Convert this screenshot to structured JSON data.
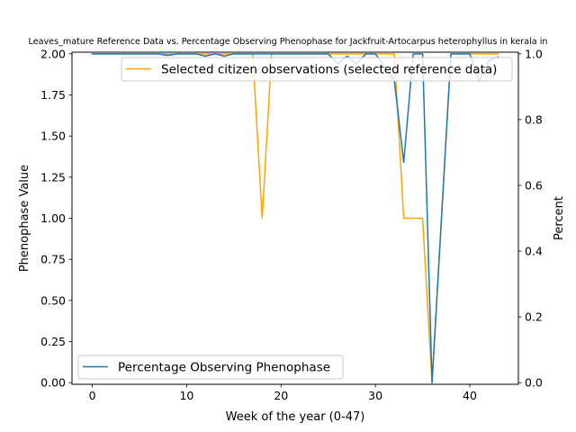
{
  "chart_data": {
    "type": "line",
    "title": "Leaves_mature Reference Data vs. Percentage Observing Phenophase for Jackfruit-Artocarpus heterophyllus in kerala in",
    "xlabel": "Week of the year (0-47)",
    "ylabel_left": "Phenophase Value",
    "ylabel_right": "Percent",
    "xlim": [
      -2.15,
      45.15
    ],
    "ylim_left": [
      -0.01,
      2.01
    ],
    "ylim_right": [
      -0.005,
      1.005
    ],
    "x_ticks": [
      "0",
      "10",
      "20",
      "30",
      "40"
    ],
    "y_ticks_left": [
      "0.00",
      "0.25",
      "0.50",
      "0.75",
      "1.00",
      "1.25",
      "1.50",
      "1.75",
      "2.00"
    ],
    "y_ticks_right": [
      "0.0",
      "0.2",
      "0.4",
      "0.6",
      "0.8",
      "1.0"
    ],
    "grid": false,
    "series": [
      {
        "name": "Selected citizen observations (selected reference data)",
        "axis": "left",
        "color": "#ffa500",
        "legend_position": "upper-right",
        "x": [
          0,
          1,
          2,
          3,
          4,
          5,
          6,
          7,
          8,
          9,
          10,
          11,
          12,
          13,
          14,
          15,
          16,
          17,
          18,
          19,
          20,
          21,
          22,
          23,
          24,
          25,
          26,
          27,
          28,
          29,
          30,
          31,
          32,
          33,
          34,
          35,
          36,
          37,
          38,
          39,
          40,
          41,
          42,
          43
        ],
        "y": [
          2,
          2,
          2,
          2,
          2,
          2,
          2,
          2,
          2,
          2,
          2,
          2,
          2,
          2,
          2,
          2,
          2,
          2,
          1,
          2,
          2,
          2,
          2,
          2,
          2,
          2,
          2,
          2,
          2,
          2,
          2,
          2,
          2,
          1,
          1,
          1,
          0,
          1,
          2,
          2,
          2,
          2,
          2,
          2
        ]
      },
      {
        "name": "Percentage Observing Phenophase",
        "axis": "right",
        "color": "#1f77b4",
        "legend_position": "lower-left",
        "x": [
          0,
          1,
          2,
          3,
          4,
          5,
          6,
          7,
          8,
          9,
          10,
          11,
          12,
          13,
          14,
          15,
          16,
          17,
          18,
          19,
          20,
          21,
          22,
          23,
          24,
          25,
          26,
          27,
          28,
          29,
          30,
          31,
          32,
          33,
          34,
          35,
          36,
          37,
          38,
          39,
          40,
          41,
          42,
          43
        ],
        "y": [
          1,
          1,
          1,
          1,
          1,
          1,
          1,
          1,
          0.995,
          1,
          1,
          1,
          0.993,
          1,
          0.993,
          1,
          1,
          1,
          1,
          1,
          1,
          1,
          1,
          1,
          1,
          1,
          0.97,
          0.993,
          0.97,
          1,
          1,
          0.96,
          0.92,
          0.67,
          1,
          1,
          0,
          0.5,
          1,
          1,
          1,
          0.917,
          0.98,
          0.99
        ]
      }
    ]
  }
}
